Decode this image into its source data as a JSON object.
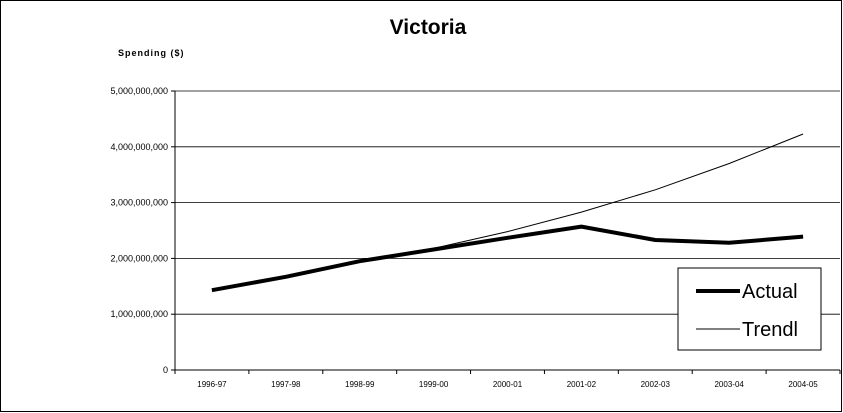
{
  "chart_data": {
    "type": "line",
    "title": "Victoria",
    "ylabel": "Spending ($)",
    "xlabel": "",
    "categories": [
      "1996-97",
      "1997-98",
      "1998-99",
      "1999-00",
      "2000-01",
      "2001-02",
      "2002-03",
      "2003-04",
      "2004-05"
    ],
    "ylim": [
      0,
      5000000000
    ],
    "yticks": [
      0,
      1000000000,
      2000000000,
      3000000000,
      4000000000,
      5000000000
    ],
    "ytick_labels": [
      "0",
      "1,000,000,000",
      "2,000,000,000",
      "3,000,000,000",
      "4,000,000,000",
      "5,000,000,000"
    ],
    "grid": true,
    "legend_position": "bottom-right",
    "series": [
      {
        "name": "Actual",
        "color": "#000000",
        "style": "thick",
        "values": [
          1430000000,
          1670000000,
          1950000000,
          2160000000,
          2370000000,
          2570000000,
          2330000000,
          2280000000,
          2390000000
        ]
      },
      {
        "name": "Trendl",
        "color": "#000000",
        "style": "thin",
        "values": [
          1430000000,
          1680000000,
          1940000000,
          2180000000,
          2480000000,
          2830000000,
          3230000000,
          3700000000,
          4230000000
        ]
      }
    ]
  }
}
